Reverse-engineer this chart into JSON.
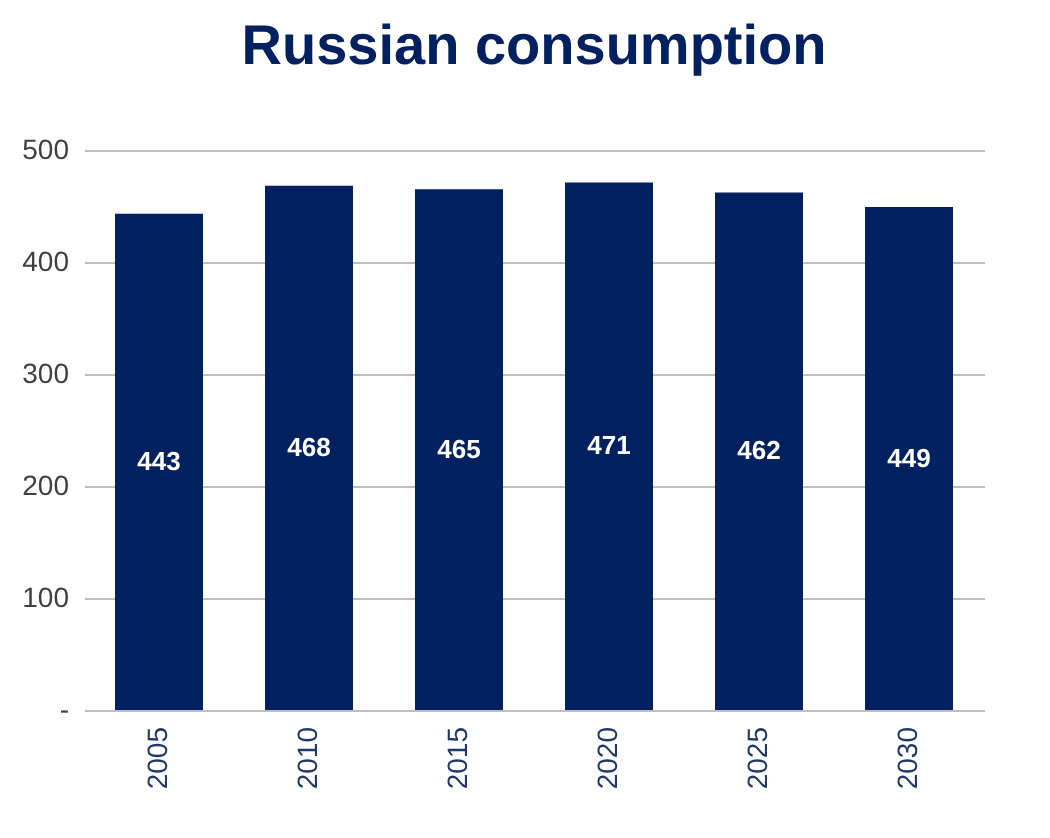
{
  "chart_data": {
    "type": "bar",
    "title": "Russian consumption",
    "categories": [
      "2005",
      "2010",
      "2015",
      "2020",
      "2025",
      "2030"
    ],
    "values": [
      443,
      468,
      465,
      471,
      462,
      449
    ],
    "color": "#002060",
    "ylim": [
      0,
      500
    ],
    "yticks": [
      {
        "value": 0,
        "label": "-"
      },
      100,
      200,
      300,
      400,
      500
    ],
    "grid": "y",
    "data_labels": true
  }
}
